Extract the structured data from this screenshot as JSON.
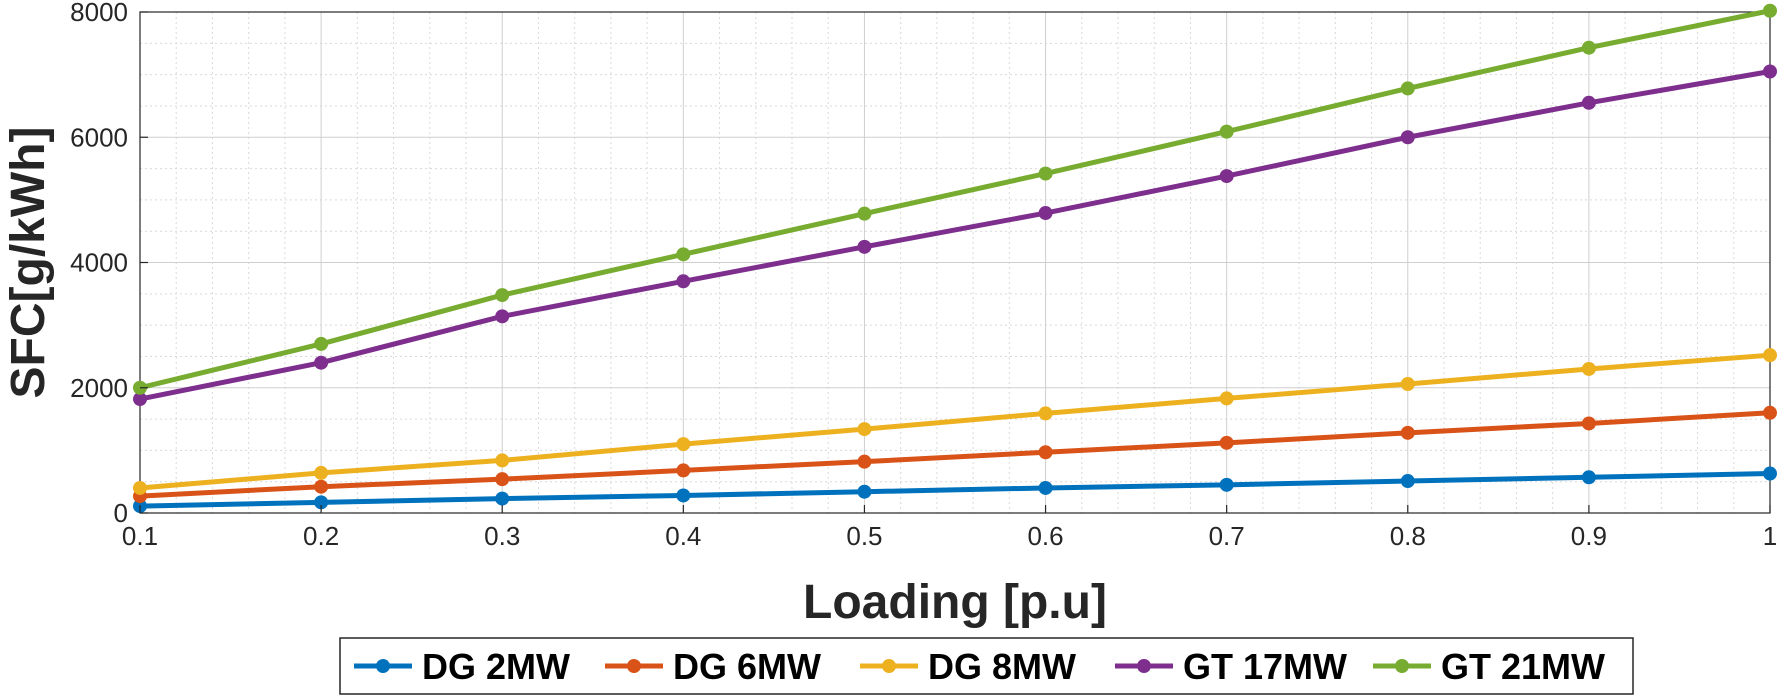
{
  "chart_data": {
    "type": "line",
    "xlabel": "Loading [p.u]",
    "ylabel": "SFC[g/kWh]",
    "xlim": [
      0.1,
      1
    ],
    "ylim": [
      0,
      8000
    ],
    "x": [
      0.1,
      0.2,
      0.3,
      0.4,
      0.5,
      0.6,
      0.7,
      0.8,
      0.9,
      1
    ],
    "x_ticks": [
      "0.1",
      "0.2",
      "0.3",
      "0.4",
      "0.5",
      "0.6",
      "0.7",
      "0.8",
      "0.9",
      "1"
    ],
    "y_ticks": [
      "0",
      "2000",
      "4000",
      "6000",
      "8000"
    ],
    "grid": true,
    "minor_grid": true,
    "legend_position": "bottom-center",
    "series": [
      {
        "name": "DG 2MW",
        "color": "#0072BD",
        "values": [
          110,
          170,
          230,
          280,
          340,
          400,
          450,
          510,
          570,
          630
        ]
      },
      {
        "name": "DG 6MW",
        "color": "#D95319",
        "values": [
          270,
          420,
          540,
          680,
          820,
          970,
          1120,
          1280,
          1430,
          1600
        ]
      },
      {
        "name": "DG 8MW",
        "color": "#EDB120",
        "values": [
          400,
          640,
          840,
          1100,
          1340,
          1590,
          1830,
          2060,
          2300,
          2520
        ]
      },
      {
        "name": "GT 17MW",
        "color": "#7E2F8E",
        "values": [
          1820,
          2400,
          3140,
          3700,
          4250,
          4790,
          5380,
          6000,
          6550,
          7050
        ]
      },
      {
        "name": "GT 21MW",
        "color": "#77AC30",
        "values": [
          2000,
          2700,
          3480,
          4130,
          4780,
          5420,
          6090,
          6780,
          7430,
          8020
        ]
      }
    ]
  }
}
